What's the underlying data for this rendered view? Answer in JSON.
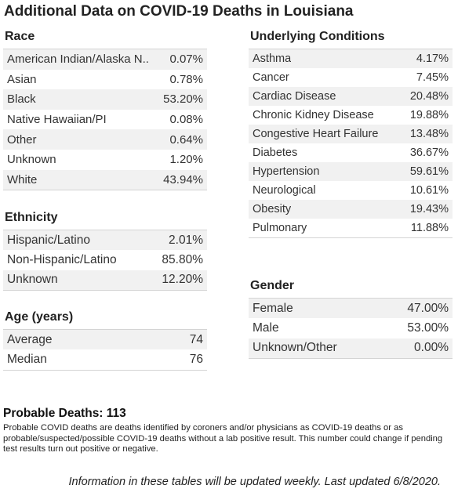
{
  "title": "Additional Data on COVID-19 Deaths in Louisiana",
  "race": {
    "title": "Race",
    "rows": [
      {
        "label": "American Indian/Alaska N..",
        "value": "0.07%"
      },
      {
        "label": "Asian",
        "value": "0.78%"
      },
      {
        "label": "Black",
        "value": "53.20%"
      },
      {
        "label": "Native Hawaiian/PI",
        "value": "0.08%"
      },
      {
        "label": "Other",
        "value": "0.64%"
      },
      {
        "label": "Unknown",
        "value": "1.20%"
      },
      {
        "label": "White",
        "value": "43.94%"
      }
    ]
  },
  "ethnicity": {
    "title": "Ethnicity",
    "rows": [
      {
        "label": "Hispanic/Latino",
        "value": "2.01%"
      },
      {
        "label": "Non-Hispanic/Latino",
        "value": "85.80%"
      },
      {
        "label": "Unknown",
        "value": "12.20%"
      }
    ]
  },
  "age": {
    "title": "Age (years)",
    "rows": [
      {
        "label": "Average",
        "value": "74"
      },
      {
        "label": "Median",
        "value": "76"
      }
    ]
  },
  "conditions": {
    "title": "Underlying Conditions",
    "rows": [
      {
        "label": "Asthma",
        "value": "4.17%"
      },
      {
        "label": "Cancer",
        "value": "7.45%"
      },
      {
        "label": "Cardiac Disease",
        "value": "20.48%"
      },
      {
        "label": "Chronic Kidney Disease",
        "value": "19.88%"
      },
      {
        "label": "Congestive Heart Failure",
        "value": "13.48%"
      },
      {
        "label": "Diabetes",
        "value": "36.67%"
      },
      {
        "label": "Hypertension",
        "value": "59.61%"
      },
      {
        "label": "Neurological",
        "value": "10.61%"
      },
      {
        "label": "Obesity",
        "value": "19.43%"
      },
      {
        "label": "Pulmonary",
        "value": "11.88%"
      }
    ]
  },
  "gender": {
    "title": "Gender",
    "rows": [
      {
        "label": "Female",
        "value": "47.00%"
      },
      {
        "label": "Male",
        "value": "53.00%"
      },
      {
        "label": "Unknown/Other",
        "value": "0.00%"
      }
    ]
  },
  "probable": {
    "title": "Probable Deaths: 113",
    "note": "Probable COVID deaths are deaths identified by coroners and/or physicians as COVID-19 deaths or as probable/suspected/possible COVID-19 deaths without a lab positive result. This number could change if pending test results turn out positive or negative."
  },
  "footer": "Information in these tables will be updated weekly. Last updated 6/8/2020."
}
